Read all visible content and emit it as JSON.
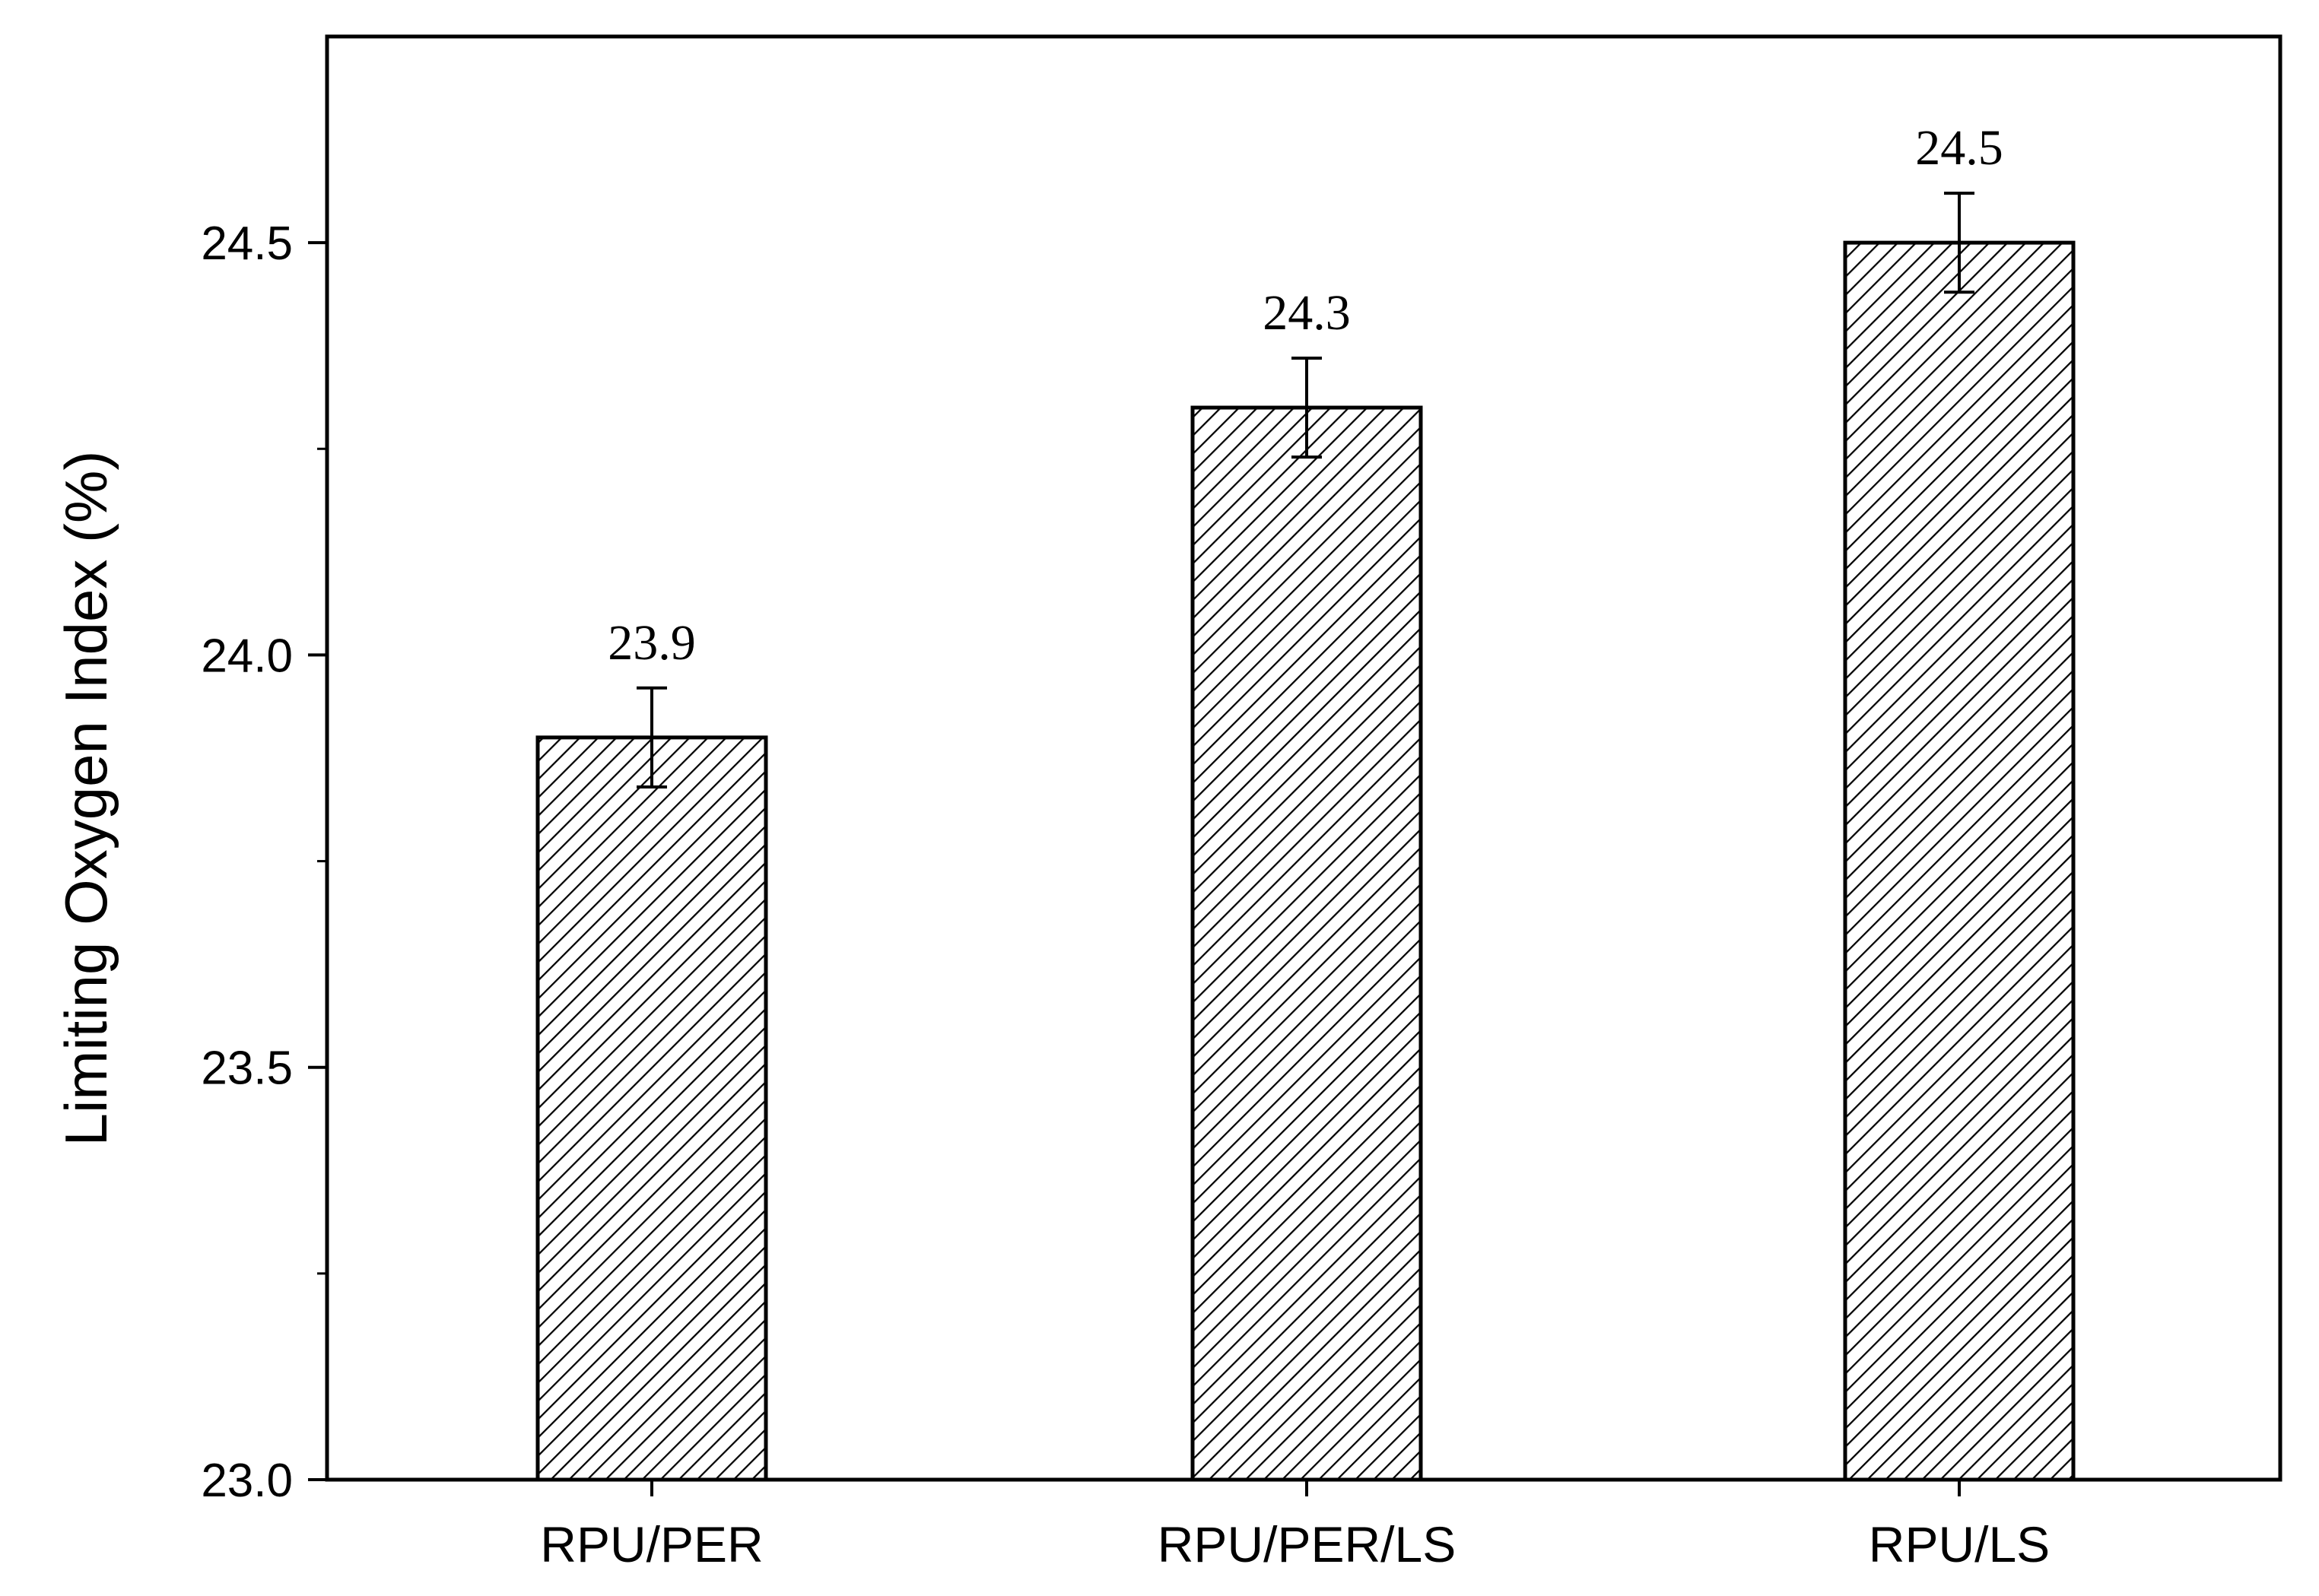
{
  "chart_data": {
    "type": "bar",
    "title": "",
    "xlabel": "",
    "ylabel": "Limiting Oxygen Index (%)",
    "categories": [
      "RPU/PER",
      "RPU/PER/LS",
      "RPU/LS"
    ],
    "values": [
      23.9,
      24.3,
      24.5
    ],
    "errors": [
      0.06,
      0.06,
      0.06
    ],
    "data_labels": [
      "23.9",
      "24.3",
      "24.5"
    ],
    "ylim": [
      23.0,
      24.75
    ],
    "yticks": [
      23.0,
      23.5,
      24.0,
      24.5
    ],
    "ytick_labels": [
      "23.0",
      "23.5",
      "24.0",
      "24.5"
    ],
    "grid": false,
    "legend": "none",
    "bar_fill": "diagonal-hatch",
    "colors": {
      "stroke": "#000000",
      "background": "#ffffff"
    }
  }
}
